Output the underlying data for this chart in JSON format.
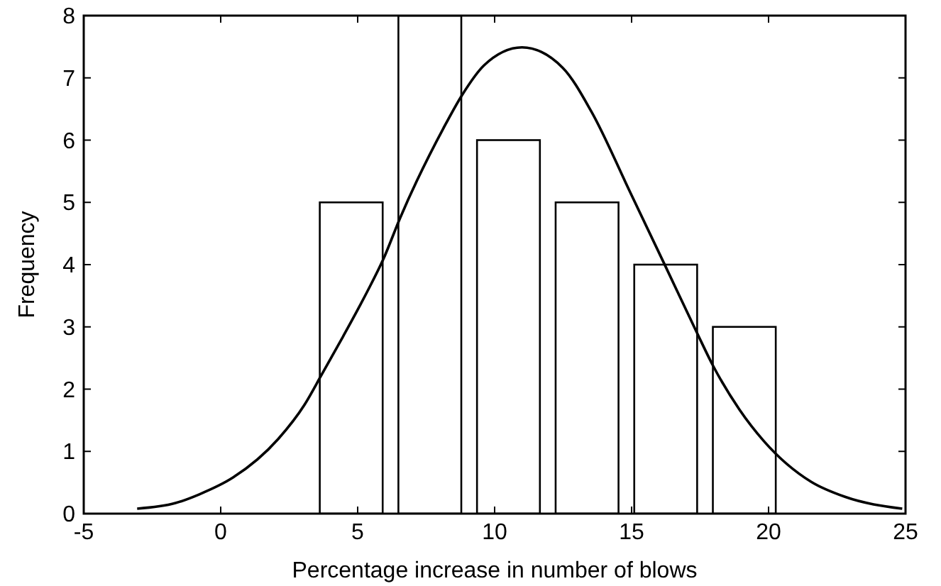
{
  "chart_data": {
    "type": "histogram",
    "xlabel": "Percentage increase in number of blows",
    "ylabel": "Frequency",
    "bins": [
      3.33,
      6.2,
      9.07,
      11.94,
      14.81,
      17.68,
      20.55
    ],
    "values": [
      5,
      8,
      6,
      5,
      4,
      3
    ],
    "color": "#ffffff",
    "series": [
      {
        "type": "line",
        "color": "#000000",
        "x": [
          -3.05,
          -1.65,
          -0.78,
          0.45,
          2.1,
          3.06,
          3.67,
          4.46,
          5.33,
          5.94,
          6.55,
          8.13,
          8.82,
          9.61,
          11.0,
          12.49,
          13.53,
          14.93,
          16.24,
          17.37,
          17.98,
          18.94,
          19.82,
          21.56,
          22.79,
          24.88
        ],
        "values": [
          0.08,
          0.17,
          0.31,
          0.58,
          1.2,
          1.75,
          2.22,
          2.84,
          3.55,
          4.09,
          4.75,
          6.19,
          6.73,
          7.2,
          7.49,
          7.16,
          6.46,
          5.18,
          3.97,
          2.92,
          2.37,
          1.67,
          1.17,
          0.51,
          0.27,
          0.08
        ]
      }
    ],
    "xlim": [
      -5,
      25
    ],
    "xticks": [
      -5,
      0,
      5,
      10,
      15,
      20,
      25
    ],
    "ylim": [
      0,
      8
    ],
    "yticks": [
      0,
      1,
      2,
      3,
      4,
      5,
      6,
      7,
      8
    ],
    "grid": false
  }
}
